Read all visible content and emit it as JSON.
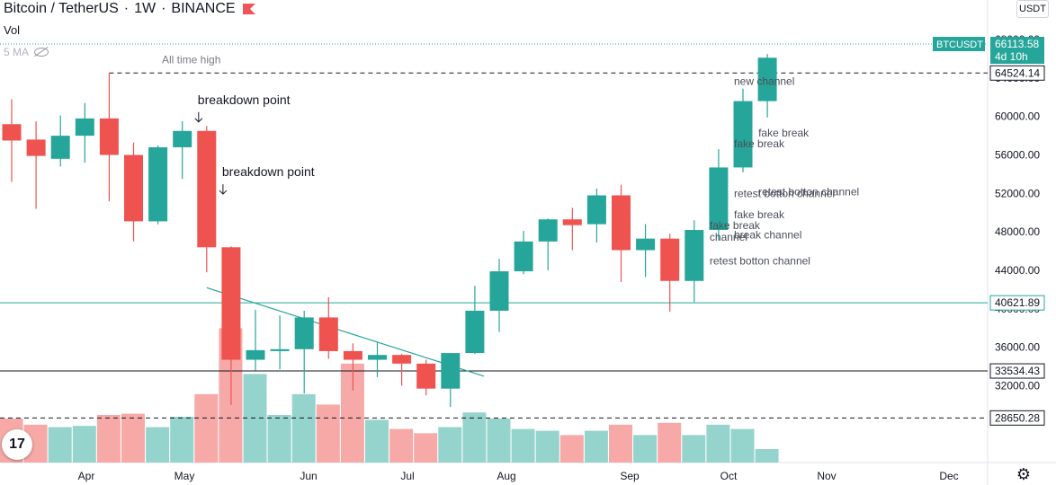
{
  "header": {
    "symbol": "Bitcoin / TetherUS",
    "interval": "1W",
    "exchange": "BINANCE",
    "vol_label": "Vol",
    "ma_label": "5 MA",
    "currency_button": "USDT"
  },
  "chart_data": {
    "type": "candlestick",
    "x_axis_labels": [
      "Apr",
      "May",
      "Jun",
      "Jul",
      "Aug",
      "Sep",
      "Oct",
      "Nov",
      "Dec"
    ],
    "y_ticks": [
      32000,
      36000,
      40000,
      44000,
      48000,
      52000,
      56000,
      60000,
      64000,
      68000
    ],
    "y_tick_labels": [
      "32000.00",
      "36000.00",
      "40000.00",
      "44000.00",
      "48000.00",
      "52000.00",
      "56000.00",
      "60000.00",
      "64000.00",
      "68000.00"
    ],
    "ylim": [
      27000,
      69500
    ],
    "candles": [
      {
        "o": 59200,
        "h": 61800,
        "l": 53200,
        "c": 57500
      },
      {
        "o": 57600,
        "h": 59500,
        "l": 50400,
        "c": 55900
      },
      {
        "o": 55600,
        "h": 60100,
        "l": 54800,
        "c": 58000
      },
      {
        "o": 58000,
        "h": 61400,
        "l": 55200,
        "c": 59800
      },
      {
        "o": 59800,
        "h": 64524,
        "l": 51200,
        "c": 56000
      },
      {
        "o": 56000,
        "h": 57300,
        "l": 47000,
        "c": 49100
      },
      {
        "o": 49100,
        "h": 57000,
        "l": 48800,
        "c": 56800
      },
      {
        "o": 56800,
        "h": 59500,
        "l": 53500,
        "c": 58500
      },
      {
        "o": 58500,
        "h": 59000,
        "l": 43800,
        "c": 46400
      },
      {
        "o": 46400,
        "h": 46500,
        "l": 30000,
        "c": 34700
      },
      {
        "o": 34700,
        "h": 39900,
        "l": 33600,
        "c": 35700
      },
      {
        "o": 35600,
        "h": 39300,
        "l": 33700,
        "c": 35800
      },
      {
        "o": 35800,
        "h": 39800,
        "l": 31200,
        "c": 39100
      },
      {
        "o": 39100,
        "h": 41200,
        "l": 34800,
        "c": 35600
      },
      {
        "o": 35600,
        "h": 36400,
        "l": 31500,
        "c": 34700
      },
      {
        "o": 34700,
        "h": 36500,
        "l": 32900,
        "c": 35200
      },
      {
        "o": 35200,
        "h": 35300,
        "l": 32000,
        "c": 34300
      },
      {
        "o": 34300,
        "h": 34700,
        "l": 31000,
        "c": 31700
      },
      {
        "o": 31700,
        "h": 35300,
        "l": 29800,
        "c": 35400
      },
      {
        "o": 35400,
        "h": 42400,
        "l": 35300,
        "c": 39800
      },
      {
        "o": 39800,
        "h": 45200,
        "l": 37600,
        "c": 43900
      },
      {
        "o": 43900,
        "h": 48100,
        "l": 43600,
        "c": 47000
      },
      {
        "o": 47000,
        "h": 49400,
        "l": 44000,
        "c": 49300
      },
      {
        "o": 49300,
        "h": 50500,
        "l": 46100,
        "c": 48700
      },
      {
        "o": 48800,
        "h": 52500,
        "l": 46900,
        "c": 51800
      },
      {
        "o": 51800,
        "h": 52900,
        "l": 42800,
        "c": 46100
      },
      {
        "o": 46100,
        "h": 48800,
        "l": 43300,
        "c": 47300
      },
      {
        "o": 47300,
        "h": 47800,
        "l": 39700,
        "c": 42900
      },
      {
        "o": 42900,
        "h": 49200,
        "l": 40700,
        "c": 48200
      },
      {
        "o": 48200,
        "h": 56600,
        "l": 47100,
        "c": 54700
      },
      {
        "o": 54700,
        "h": 62900,
        "l": 54200,
        "c": 61600
      },
      {
        "o": 61600,
        "h": 66500,
        "l": 59900,
        "c": 66113
      }
    ],
    "volume": [
      {
        "v": 0.72,
        "up": false
      },
      {
        "v": 0.62,
        "up": false
      },
      {
        "v": 0.58,
        "up": true
      },
      {
        "v": 0.6,
        "up": true
      },
      {
        "v": 0.78,
        "up": false
      },
      {
        "v": 0.8,
        "up": false
      },
      {
        "v": 0.58,
        "up": true
      },
      {
        "v": 0.75,
        "up": true
      },
      {
        "v": 1.12,
        "up": false
      },
      {
        "v": 2.2,
        "up": false
      },
      {
        "v": 1.45,
        "up": true
      },
      {
        "v": 0.78,
        "up": true
      },
      {
        "v": 1.12,
        "up": true
      },
      {
        "v": 0.95,
        "up": false
      },
      {
        "v": 1.62,
        "up": false
      },
      {
        "v": 0.7,
        "up": true
      },
      {
        "v": 0.55,
        "up": false
      },
      {
        "v": 0.48,
        "up": false
      },
      {
        "v": 0.58,
        "up": true
      },
      {
        "v": 0.82,
        "up": true
      },
      {
        "v": 0.72,
        "up": true
      },
      {
        "v": 0.55,
        "up": true
      },
      {
        "v": 0.52,
        "up": true
      },
      {
        "v": 0.45,
        "up": false
      },
      {
        "v": 0.52,
        "up": true
      },
      {
        "v": 0.62,
        "up": false
      },
      {
        "v": 0.45,
        "up": true
      },
      {
        "v": 0.65,
        "up": false
      },
      {
        "v": 0.45,
        "up": true
      },
      {
        "v": 0.62,
        "up": true
      },
      {
        "v": 0.55,
        "up": true
      },
      {
        "v": 0.22,
        "up": true
      }
    ],
    "levels": [
      {
        "value": 64524.14,
        "label": "64524.14",
        "style": "dashed-black",
        "text": "All time high"
      },
      {
        "value": 40621.89,
        "label": "40621.89",
        "style": "solid-teal",
        "text": ""
      },
      {
        "value": 33534.43,
        "label": "33534.43",
        "style": "solid-black",
        "text": ""
      },
      {
        "value": 28650.28,
        "label": "28650.28",
        "style": "dashed-black",
        "text": ""
      }
    ],
    "price_tag": {
      "symbol": "BTCUSDT",
      "value": "66113.58",
      "countdown": "4d 10h"
    },
    "trendline": {
      "from_index": 8,
      "from_value": 42200,
      "to_index": 19,
      "to_value": 33000
    },
    "annotations": [
      {
        "text": "breakdown point",
        "index": 8,
        "value": 61300,
        "arrow": true
      },
      {
        "text": "breakdown point",
        "index": 9,
        "value": 53800,
        "arrow": true
      },
      {
        "text": "new channel",
        "index": 30,
        "value": 63300
      },
      {
        "text": "fake break",
        "index": 31,
        "value": 57900
      },
      {
        "text": "fake break",
        "index": 30,
        "value": 56800
      },
      {
        "text": "retest botton channel",
        "index": 31,
        "value": 51800
      },
      {
        "text": "retest botton channel",
        "index": 30,
        "value": 51600
      },
      {
        "text": "fake break",
        "index": 30,
        "value": 49400
      },
      {
        "text": "fake break",
        "index": 29,
        "value": 48300
      },
      {
        "text": "break channel",
        "index": 30,
        "value": 47300
      },
      {
        "text": "channel",
        "index": 29,
        "value": 47100
      },
      {
        "text": "retest botton channel",
        "index": 29,
        "value": 44600
      }
    ],
    "colors": {
      "up": "#26a69a",
      "down": "#ef5350",
      "vol_up": "#95d3cd",
      "vol_down": "#f7a9a7",
      "level_teal": "#26a69a",
      "level_black": "#131722"
    }
  }
}
